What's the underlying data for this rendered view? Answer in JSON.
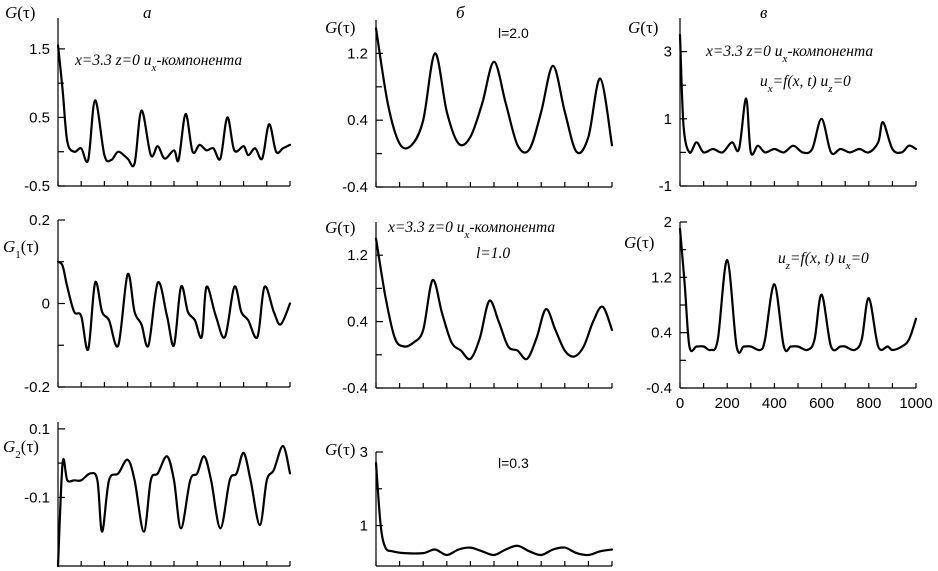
{
  "panel_labels": [
    "а",
    "б",
    "в"
  ],
  "chart_data": [
    {
      "type": "line",
      "column": "а",
      "row": 0,
      "ylabel": "G(τ)",
      "yticks": [
        "1.5",
        "0.5",
        "-0.5"
      ],
      "ytick_values": [
        1.5,
        0.5,
        -0.5
      ],
      "ylim": [
        -0.5,
        1.95
      ],
      "annotations": [
        "x=3.3 z=0 ux-компонента"
      ],
      "series": [
        {
          "x": [
            0,
            20,
            40,
            70,
            100,
            130,
            160,
            200,
            230,
            260,
            300,
            330,
            360,
            400,
            430,
            460,
            500,
            520,
            550,
            580,
            610,
            640,
            670,
            700,
            730,
            760,
            800,
            820,
            850,
            880,
            910,
            940,
            970,
            1000
          ],
          "values": [
            1.55,
            0.9,
            0.15,
            0.0,
            0.05,
            -0.12,
            0.75,
            -0.05,
            -0.12,
            0.0,
            -0.1,
            -0.17,
            0.6,
            -0.05,
            0.08,
            -0.1,
            0.02,
            -0.12,
            0.55,
            0.0,
            0.1,
            0.02,
            0.05,
            -0.1,
            0.5,
            0.02,
            0.08,
            -0.05,
            0.05,
            -0.1,
            0.4,
            0.0,
            0.05,
            0.1
          ]
        }
      ]
    },
    {
      "type": "line",
      "column": "а",
      "row": 1,
      "ylabel": "G1(τ)",
      "yticks": [
        "0.2",
        "0",
        "-0.2"
      ],
      "ytick_values": [
        0.2,
        0,
        -0.2
      ],
      "ylim": [
        -0.2,
        0.2
      ],
      "series": [
        {
          "x": [
            0,
            20,
            40,
            70,
            100,
            130,
            160,
            190,
            220,
            260,
            300,
            330,
            360,
            390,
            430,
            470,
            500,
            530,
            560,
            590,
            620,
            640,
            680,
            720,
            760,
            790,
            820,
            860,
            890,
            930,
            960,
            1000
          ],
          "values": [
            0.1,
            0.09,
            0.04,
            -0.02,
            -0.03,
            -0.11,
            0.05,
            -0.02,
            -0.04,
            -0.1,
            0.07,
            -0.02,
            -0.05,
            -0.1,
            0.05,
            -0.03,
            -0.1,
            0.04,
            -0.02,
            -0.04,
            -0.08,
            0.04,
            -0.03,
            -0.08,
            0.04,
            -0.02,
            -0.04,
            -0.08,
            0.04,
            -0.02,
            -0.05,
            0.0
          ]
        }
      ]
    },
    {
      "type": "line",
      "column": "а",
      "row": 2,
      "ylabel": "G2(τ)",
      "yticks": [
        "0.1",
        "-0.1"
      ],
      "ytick_values": [
        0.1,
        -0.1
      ],
      "ylim": [
        -0.3,
        0.12
      ],
      "series": [
        {
          "x": [
            0,
            20,
            40,
            70,
            100,
            140,
            170,
            190,
            220,
            260,
            300,
            330,
            370,
            400,
            430,
            470,
            500,
            530,
            570,
            600,
            630,
            660,
            700,
            740,
            770,
            800,
            830,
            870,
            900,
            930,
            970,
            1000
          ],
          "values": [
            -0.3,
            0.0,
            -0.05,
            -0.05,
            -0.05,
            -0.03,
            -0.05,
            -0.2,
            -0.05,
            -0.03,
            0.01,
            -0.05,
            -0.2,
            -0.05,
            -0.03,
            0.02,
            -0.05,
            -0.19,
            -0.05,
            -0.03,
            0.02,
            -0.05,
            -0.19,
            -0.05,
            -0.03,
            0.03,
            -0.05,
            -0.18,
            -0.05,
            -0.02,
            0.05,
            -0.03
          ]
        }
      ]
    },
    {
      "type": "line",
      "column": "б",
      "row": 0,
      "ylabel": "G(τ)",
      "yticks": [
        "1.2",
        "0.4",
        "-0.4"
      ],
      "ytick_values": [
        1.2,
        0.4,
        -0.4
      ],
      "ylim": [
        -0.4,
        1.6
      ],
      "annotations": [
        "l=2.0"
      ],
      "series": [
        {
          "x": [
            0,
            50,
            100,
            150,
            200,
            250,
            300,
            350,
            400,
            450,
            500,
            550,
            600,
            650,
            700,
            750,
            800,
            850,
            900,
            950,
            1000
          ],
          "values": [
            1.5,
            0.6,
            0.12,
            0.1,
            0.4,
            1.2,
            0.5,
            0.12,
            0.2,
            0.6,
            1.1,
            0.6,
            0.1,
            0.05,
            0.5,
            1.05,
            0.5,
            0.02,
            0.2,
            0.9,
            0.1
          ]
        }
      ]
    },
    {
      "type": "line",
      "column": "б",
      "row": 1,
      "ylabel": "G(τ)",
      "yticks": [
        "1.2",
        "0.4",
        "-0.4"
      ],
      "ytick_values": [
        1.2,
        0.4,
        -0.4
      ],
      "ylim": [
        -0.4,
        1.6
      ],
      "annotations": [
        "x=3.3 z=0 ux-компонента",
        "l=1.0"
      ],
      "series": [
        {
          "x": [
            0,
            40,
            80,
            120,
            160,
            200,
            240,
            280,
            320,
            360,
            400,
            440,
            480,
            520,
            560,
            600,
            640,
            680,
            720,
            760,
            800,
            840,
            880,
            920,
            960,
            1000
          ],
          "values": [
            1.4,
            0.7,
            0.2,
            0.1,
            0.15,
            0.3,
            0.9,
            0.5,
            0.15,
            0.05,
            -0.05,
            0.2,
            0.65,
            0.4,
            0.1,
            0.05,
            -0.05,
            0.2,
            0.55,
            0.3,
            0.05,
            -0.02,
            0.1,
            0.4,
            0.58,
            0.3
          ]
        }
      ]
    },
    {
      "type": "line",
      "column": "б",
      "row": 2,
      "ylabel": "G(τ)",
      "yticks": [
        "3",
        "1"
      ],
      "ytick_values": [
        3,
        1
      ],
      "ylim": [
        -0.1,
        3.0
      ],
      "annotations": [
        "l=0.3"
      ],
      "series": [
        {
          "x": [
            0,
            20,
            40,
            70,
            120,
            200,
            250,
            300,
            350,
            400,
            450,
            500,
            550,
            600,
            650,
            700,
            750,
            800,
            850,
            900,
            950,
            1000
          ],
          "values": [
            2.7,
            1.0,
            0.4,
            0.3,
            0.25,
            0.25,
            0.35,
            0.2,
            0.35,
            0.4,
            0.3,
            0.2,
            0.35,
            0.45,
            0.3,
            0.2,
            0.35,
            0.4,
            0.25,
            0.2,
            0.3,
            0.35
          ]
        }
      ]
    },
    {
      "type": "line",
      "column": "в",
      "row": 0,
      "ylabel": "G(τ)",
      "yticks": [
        "3",
        "1",
        "-1"
      ],
      "ytick_values": [
        3,
        1,
        -1
      ],
      "ylim": [
        -1,
        4.0
      ],
      "annotations": [
        "x=3.3 z=0 ux-компонента",
        "ux=f(x, t) uz=0"
      ],
      "series": [
        {
          "x": [
            0,
            15,
            40,
            70,
            100,
            140,
            180,
            220,
            250,
            280,
            300,
            330,
            360,
            400,
            440,
            480,
            520,
            560,
            600,
            640,
            680,
            720,
            760,
            800,
            840,
            860,
            900,
            940,
            970,
            1000
          ],
          "values": [
            3.5,
            0.8,
            0.0,
            0.3,
            0.0,
            0.1,
            0.0,
            0.3,
            0.1,
            1.6,
            0.0,
            0.2,
            0.0,
            0.1,
            0.0,
            0.2,
            0.0,
            0.1,
            1.0,
            0.0,
            0.1,
            0.0,
            0.1,
            0.0,
            0.3,
            0.9,
            0.1,
            0.0,
            0.2,
            0.1
          ]
        }
      ]
    },
    {
      "type": "line",
      "column": "в",
      "row": 1,
      "ylabel": "G(τ)",
      "yticks": [
        "2",
        "1.2",
        "0.4",
        "-0.4"
      ],
      "ytick_values": [
        2,
        1.2,
        0.4,
        -0.4
      ],
      "ylim": [
        -0.4,
        2.0
      ],
      "xticks": [
        "0",
        "200",
        "400",
        "600",
        "800",
        "1000"
      ],
      "xtick_values": [
        0,
        200,
        400,
        600,
        800,
        1000
      ],
      "xlim": [
        0,
        1000
      ],
      "annotations": [
        "uz=f(x, t) ux=0"
      ],
      "series": [
        {
          "x": [
            0,
            20,
            40,
            70,
            100,
            130,
            160,
            200,
            240,
            270,
            300,
            340,
            360,
            400,
            440,
            470,
            500,
            540,
            570,
            600,
            640,
            680,
            700,
            740,
            770,
            800,
            840,
            880,
            900,
            940,
            970,
            1000
          ],
          "values": [
            1.9,
            1.1,
            0.2,
            0.2,
            0.2,
            0.15,
            0.3,
            1.45,
            0.2,
            0.2,
            0.2,
            0.15,
            0.3,
            1.1,
            0.2,
            0.2,
            0.2,
            0.15,
            0.3,
            0.95,
            0.2,
            0.2,
            0.2,
            0.15,
            0.3,
            0.9,
            0.2,
            0.2,
            0.15,
            0.2,
            0.3,
            0.6
          ]
        }
      ]
    }
  ]
}
